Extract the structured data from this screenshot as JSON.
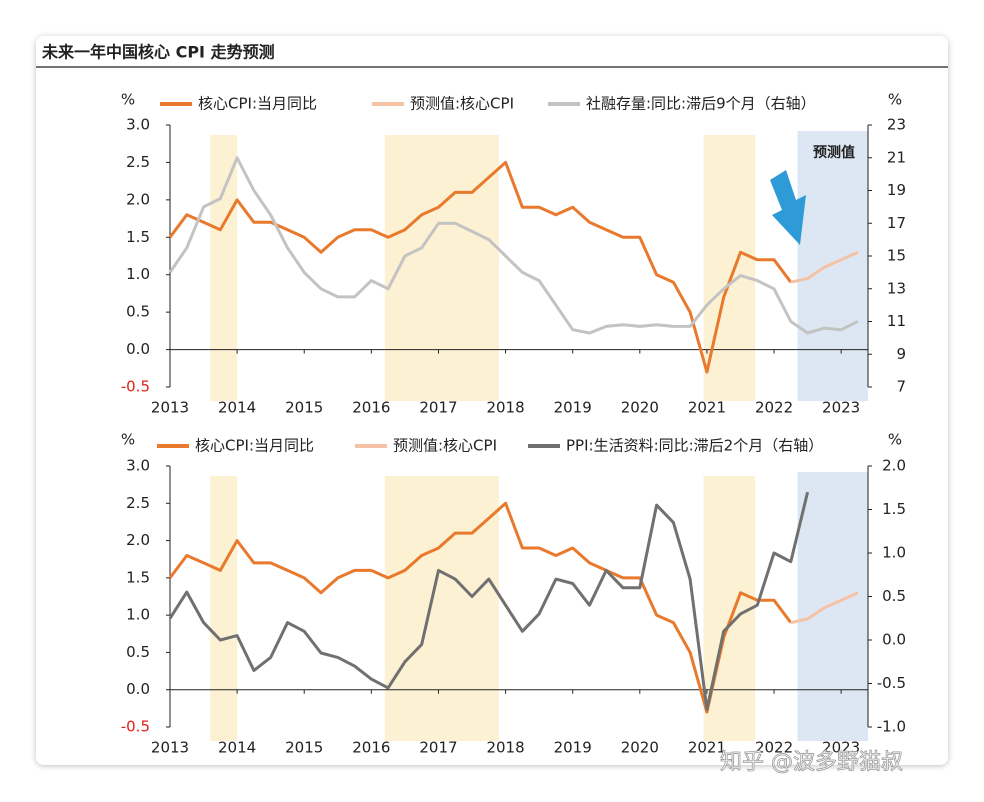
{
  "title": "未来一年中国核心 CPI 走势预测",
  "watermark": "知乎 @波多野猫叔",
  "chart_data": [
    {
      "type": "line",
      "x": [
        2013.0,
        2013.25,
        2013.5,
        2013.75,
        2014.0,
        2014.25,
        2014.5,
        2014.75,
        2015.0,
        2015.25,
        2015.5,
        2015.75,
        2016.0,
        2016.25,
        2016.5,
        2016.75,
        2017.0,
        2017.25,
        2017.5,
        2017.75,
        2018.0,
        2018.25,
        2018.5,
        2018.75,
        2019.0,
        2019.25,
        2019.5,
        2019.75,
        2020.0,
        2020.25,
        2020.5,
        2020.75,
        2021.0,
        2021.25,
        2021.5,
        2021.75,
        2022.0,
        2022.25,
        2022.5,
        2022.75,
        2023.0,
        2023.25
      ],
      "xlim": [
        2013,
        2023.4
      ],
      "xticks": [
        2013,
        2014,
        2015,
        2016,
        2017,
        2018,
        2019,
        2020,
        2021,
        2022,
        2023
      ],
      "ylim": [
        -0.5,
        3.0
      ],
      "yticks": [
        {
          "value": 3,
          "label": "3.0"
        },
        2.5,
        {
          "value": 2,
          "label": "2.0"
        },
        1.5,
        {
          "value": 1,
          "label": "1.0"
        },
        0.5,
        {
          "value": 0,
          "label": "0.0"
        },
        -0.5
      ],
      "y2lim": [
        7,
        23
      ],
      "y2ticks": [
        23,
        21,
        19,
        17,
        15,
        13,
        11,
        9,
        7
      ],
      "y_unit": "%",
      "y2_unit": "%",
      "grid": false,
      "legend": "top",
      "bands": [
        [
          2013.6,
          2014.0
        ],
        [
          2016.2,
          2017.9
        ],
        [
          2020.95,
          2021.72
        ]
      ],
      "forecast_band": [
        2022.35,
        2023.4
      ],
      "annotation": "预测值",
      "series": [
        {
          "name": "核心CPI:当月同比",
          "color": "#e8792d",
          "values": [
            1.5,
            1.8,
            1.7,
            1.6,
            2.0,
            1.7,
            1.7,
            1.6,
            1.5,
            1.3,
            1.5,
            1.6,
            1.6,
            1.5,
            1.6,
            1.8,
            1.9,
            2.1,
            2.1,
            2.3,
            2.5,
            1.9,
            1.9,
            1.8,
            1.9,
            1.7,
            1.6,
            1.5,
            1.5,
            1.0,
            0.9,
            0.5,
            -0.3,
            0.7,
            1.3,
            1.2,
            1.2,
            0.9,
            null,
            null,
            null,
            null
          ]
        },
        {
          "name": "预测值:核心CPI",
          "color": "#f5c2a5",
          "values": [
            null,
            null,
            null,
            null,
            null,
            null,
            null,
            null,
            null,
            null,
            null,
            null,
            null,
            null,
            null,
            null,
            null,
            null,
            null,
            null,
            null,
            null,
            null,
            null,
            null,
            null,
            null,
            null,
            null,
            null,
            null,
            null,
            null,
            null,
            null,
            null,
            null,
            0.9,
            0.95,
            1.1,
            1.2,
            1.3
          ]
        },
        {
          "name": "社融存量:同比:滞后9个月（右轴）",
          "color": "#c3c3c3",
          "axis": "y2",
          "values": [
            14,
            15.5,
            18,
            18.5,
            21,
            19,
            17.5,
            15.5,
            14,
            13,
            12.5,
            12.5,
            13.5,
            13,
            15,
            15.5,
            17,
            17,
            16.5,
            16,
            15,
            14,
            13.5,
            12,
            10.5,
            10.3,
            10.7,
            10.8,
            10.7,
            10.8,
            10.7,
            10.7,
            12,
            13,
            13.8,
            13.5,
            13,
            11,
            10.3,
            10.6,
            10.5,
            11.0
          ]
        }
      ]
    },
    {
      "type": "line",
      "x": [
        2013.0,
        2013.25,
        2013.5,
        2013.75,
        2014.0,
        2014.25,
        2014.5,
        2014.75,
        2015.0,
        2015.25,
        2015.5,
        2015.75,
        2016.0,
        2016.25,
        2016.5,
        2016.75,
        2017.0,
        2017.25,
        2017.5,
        2017.75,
        2018.0,
        2018.25,
        2018.5,
        2018.75,
        2019.0,
        2019.25,
        2019.5,
        2019.75,
        2020.0,
        2020.25,
        2020.5,
        2020.75,
        2021.0,
        2021.25,
        2021.5,
        2021.75,
        2022.0,
        2022.25,
        2022.5,
        2022.75,
        2023.0,
        2023.25
      ],
      "xlim": [
        2013,
        2023.4
      ],
      "xticks": [
        2013,
        2014,
        2015,
        2016,
        2017,
        2018,
        2019,
        2020,
        2021,
        2022,
        2023
      ],
      "ylim": [
        -0.5,
        3.0
      ],
      "yticks": [
        {
          "value": 3,
          "label": "3.0"
        },
        2.5,
        {
          "value": 2,
          "label": "2.0"
        },
        1.5,
        {
          "value": 1,
          "label": "1.0"
        },
        0.5,
        {
          "value": 0,
          "label": "0.0"
        },
        -0.5
      ],
      "y2lim": [
        -1.0,
        2.0
      ],
      "y2ticks": [
        {
          "value": 2,
          "label": "2.0"
        },
        1.5,
        {
          "value": 1,
          "label": "1.0"
        },
        0.5,
        {
          "value": 0,
          "label": "0.0"
        },
        -0.5,
        {
          "value": -1,
          "label": "-1.0"
        }
      ],
      "y_unit": "%",
      "y2_unit": "%",
      "grid": false,
      "legend": "top",
      "bands": [
        [
          2013.6,
          2014.0
        ],
        [
          2016.2,
          2017.9
        ],
        [
          2020.95,
          2021.72
        ]
      ],
      "forecast_band": [
        2022.35,
        2023.4
      ],
      "series": [
        {
          "name": "核心CPI:当月同比",
          "color": "#e8792d",
          "values": [
            1.5,
            1.8,
            1.7,
            1.6,
            2.0,
            1.7,
            1.7,
            1.6,
            1.5,
            1.3,
            1.5,
            1.6,
            1.6,
            1.5,
            1.6,
            1.8,
            1.9,
            2.1,
            2.1,
            2.3,
            2.5,
            1.9,
            1.9,
            1.8,
            1.9,
            1.7,
            1.6,
            1.5,
            1.5,
            1.0,
            0.9,
            0.5,
            -0.3,
            0.7,
            1.3,
            1.2,
            1.2,
            0.9,
            null,
            null,
            null,
            null
          ]
        },
        {
          "name": "预测值:核心CPI",
          "color": "#f5c2a5",
          "values": [
            null,
            null,
            null,
            null,
            null,
            null,
            null,
            null,
            null,
            null,
            null,
            null,
            null,
            null,
            null,
            null,
            null,
            null,
            null,
            null,
            null,
            null,
            null,
            null,
            null,
            null,
            null,
            null,
            null,
            null,
            null,
            null,
            null,
            null,
            null,
            null,
            null,
            0.9,
            0.95,
            1.1,
            1.2,
            1.3
          ]
        },
        {
          "name": "PPI:生活资料:同比:滞后2个月（右轴）",
          "color": "#707070",
          "axis": "y2",
          "values": [
            0.25,
            0.55,
            0.2,
            0.0,
            0.05,
            -0.35,
            -0.2,
            0.2,
            0.1,
            -0.15,
            -0.2,
            -0.3,
            -0.45,
            -0.55,
            -0.25,
            -0.05,
            0.8,
            0.7,
            0.5,
            0.7,
            0.4,
            0.1,
            0.3,
            0.7,
            0.65,
            0.4,
            0.8,
            0.6,
            0.6,
            1.55,
            1.35,
            0.7,
            -0.8,
            0.1,
            0.3,
            0.4,
            1.0,
            0.9,
            1.7,
            null,
            null,
            null
          ]
        }
      ]
    }
  ]
}
